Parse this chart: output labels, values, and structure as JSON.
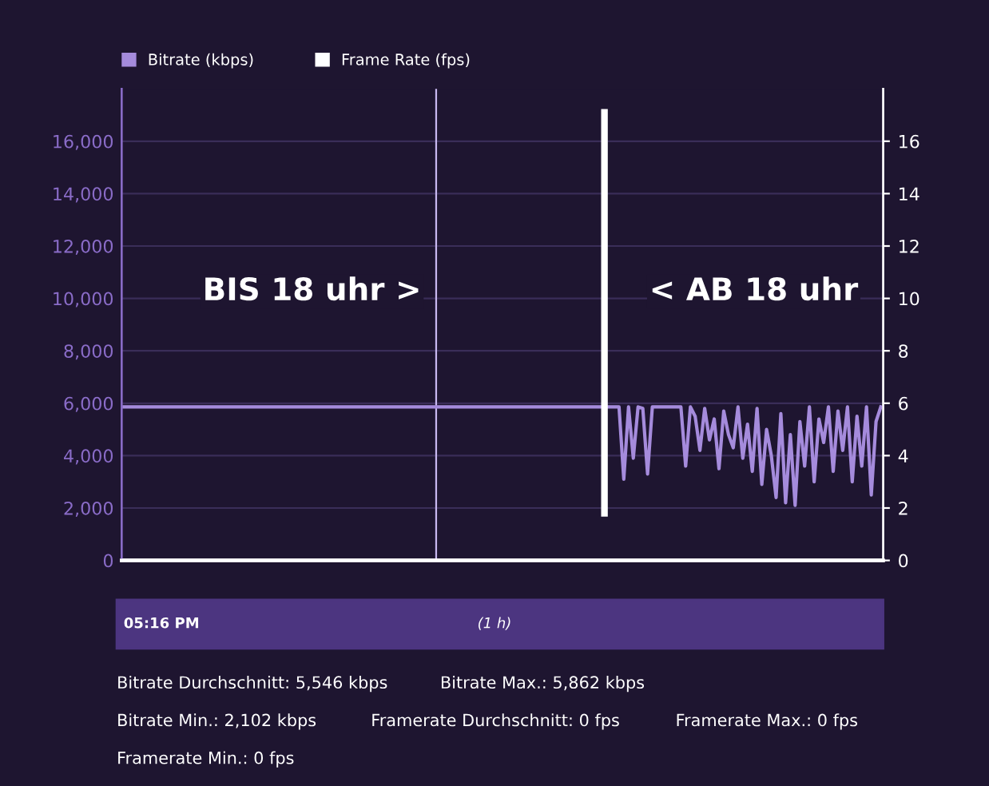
{
  "chart_data": {
    "type": "line",
    "categories": [
      null,
      null,
      null,
      null,
      null,
      null,
      null,
      null,
      null,
      null,
      null,
      null,
      null,
      null,
      null,
      null,
      null,
      null,
      null,
      null,
      null,
      null,
      null,
      null,
      null,
      null,
      null,
      null,
      null,
      null,
      null,
      null,
      null,
      null,
      null,
      null,
      null,
      null,
      null,
      null,
      null,
      null,
      null,
      null,
      null,
      null,
      null,
      null,
      null,
      null,
      null,
      null,
      null,
      null,
      null,
      null,
      null,
      null,
      null,
      null,
      null,
      null,
      null,
      null,
      null,
      null,
      null,
      null,
      null,
      null,
      null,
      null,
      null,
      null,
      null,
      null,
      null,
      null,
      null,
      null,
      null,
      null,
      null,
      null,
      null,
      null,
      null,
      null,
      null,
      null,
      null,
      null,
      null,
      null,
      null,
      null,
      null,
      null,
      null,
      null,
      null,
      null,
      null,
      null,
      null,
      null,
      null,
      null,
      null,
      null,
      null,
      null,
      null,
      null,
      null,
      null,
      null,
      null,
      null,
      null,
      null,
      null,
      null,
      null,
      null,
      null,
      null,
      null,
      null,
      null,
      null,
      null,
      null,
      null,
      null,
      null,
      null,
      null,
      null,
      null,
      null,
      null,
      null,
      null,
      null,
      null,
      null,
      null,
      null,
      null,
      null,
      null,
      null,
      null,
      null,
      null,
      null,
      null,
      null,
      null
    ],
    "series": [
      {
        "name": "Bitrate (kbps)",
        "color": "#a58bdc",
        "values": [
          5860,
          5860,
          5860,
          5860,
          5860,
          5860,
          5860,
          5860,
          5860,
          5860,
          5860,
          5860,
          5860,
          5860,
          5860,
          5860,
          5860,
          5860,
          5860,
          5860,
          5860,
          5860,
          5860,
          5860,
          5860,
          5860,
          5860,
          5860,
          5860,
          5860,
          5860,
          5860,
          5860,
          5860,
          5860,
          5860,
          5860,
          5860,
          5860,
          5860,
          5860,
          5860,
          5860,
          5860,
          5860,
          5860,
          5860,
          5860,
          5860,
          5860,
          5860,
          5860,
          5860,
          5860,
          5860,
          5860,
          5860,
          5860,
          5860,
          5860,
          5860,
          5860,
          5860,
          5860,
          5860,
          5860,
          5860,
          5860,
          5860,
          5860,
          5860,
          5860,
          5860,
          5860,
          5860,
          5860,
          5860,
          5860,
          5860,
          5860,
          5860,
          5860,
          5860,
          5860,
          5860,
          5860,
          5860,
          5860,
          5860,
          5860,
          5860,
          5860,
          5860,
          5860,
          5860,
          5860,
          5860,
          5860,
          5860,
          5860,
          5860,
          5860,
          5860,
          5860,
          5860,
          3100,
          5860,
          3900,
          5860,
          5800,
          3300,
          5860,
          5860,
          5860,
          5860,
          5860,
          5860,
          5860,
          3600,
          5860,
          5500,
          4200,
          5800,
          4600,
          5400,
          3500,
          5700,
          4800,
          4300,
          5860,
          3900,
          5200,
          3400,
          5800,
          2900,
          5000,
          4000,
          2400,
          5600,
          2200,
          4800,
          2100,
          5300,
          3600,
          5860,
          3000,
          5400,
          4500,
          5860,
          3400,
          5700,
          4200,
          5860,
          3000,
          5500,
          3600,
          5860,
          2500,
          5300,
          5860
        ]
      },
      {
        "name": "Frame Rate (fps)",
        "color": "#ffffff",
        "axis": "y2",
        "values": [
          0,
          0,
          0,
          0,
          0,
          0,
          0,
          0,
          0,
          0,
          0,
          0,
          0,
          0,
          0,
          0,
          0,
          0,
          0,
          0,
          0,
          0,
          0,
          0,
          0,
          0,
          0,
          0,
          0,
          0,
          0,
          0,
          0,
          0,
          0,
          0,
          0,
          0,
          0,
          0,
          0,
          0,
          0,
          0,
          0,
          0,
          0,
          0,
          0,
          0,
          0,
          0,
          0,
          0,
          0,
          0,
          0,
          0,
          0,
          0,
          0,
          0,
          0,
          0,
          0,
          0,
          0,
          0,
          0,
          0,
          0,
          0,
          0,
          0,
          0,
          0,
          0,
          0,
          0,
          0,
          0,
          0,
          0,
          0,
          0,
          0,
          0,
          0,
          0,
          0,
          0,
          0,
          0,
          0,
          0,
          0,
          0,
          0,
          0,
          0,
          0,
          0,
          0,
          0,
          0,
          0,
          0,
          0,
          0,
          0,
          0,
          0,
          0,
          0,
          0,
          0,
          0,
          0,
          0,
          0,
          0,
          0,
          0,
          0,
          0,
          0,
          0,
          0,
          0,
          0,
          0,
          0,
          0,
          0,
          0,
          0,
          0,
          0,
          0,
          0,
          0,
          0,
          0,
          0,
          0,
          0,
          0,
          0,
          0,
          0,
          0,
          0,
          0,
          0,
          0,
          0,
          0,
          0,
          0,
          0
        ]
      }
    ],
    "ylim": [
      0,
      18000
    ],
    "yticks": [
      {
        "value": 0,
        "label": "0"
      },
      {
        "value": 2000,
        "label": "2,000"
      },
      {
        "value": 4000,
        "label": "4,000"
      },
      {
        "value": 6000,
        "label": "6,000"
      },
      {
        "value": 8000,
        "label": "8,000"
      },
      {
        "value": 10000,
        "label": "10,000"
      },
      {
        "value": 12000,
        "label": "12,000"
      },
      {
        "value": 14000,
        "label": "14,000"
      },
      {
        "value": 16000,
        "label": "16,000"
      }
    ],
    "y2lim": [
      0,
      18
    ],
    "y2ticks": [
      0,
      2,
      4,
      6,
      8,
      10,
      12,
      14,
      16
    ],
    "grid": "y",
    "legend": "top left",
    "marker": "none",
    "line_style": "solid",
    "annotations": [
      "BIS 18 uhr >",
      "< AB 18 uhr",
      "05:16 PM",
      "(1 h)",
      "Bitrate Durchschnitt: 5,546 kbps",
      "Bitrate Max.: 5,862 kbps",
      "Bitrate Min.: 2,102 kbps",
      "Framerate Durchschnitt: 0 fps",
      "Framerate Max.: 0 fps",
      "Framerate Min.: 0 fps"
    ]
  }
}
